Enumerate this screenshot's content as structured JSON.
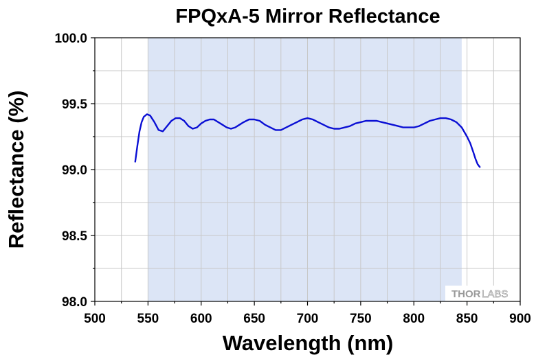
{
  "chart_data": {
    "type": "line",
    "title": "FPQxA-5 Mirror Reflectance",
    "xlabel": "Wavelength (nm)",
    "ylabel": "Reflectance (%)",
    "xlim": [
      500,
      900
    ],
    "ylim": [
      98.0,
      100.0
    ],
    "x_ticks": [
      500,
      550,
      600,
      650,
      700,
      750,
      800,
      850,
      900
    ],
    "x_tick_labels": [
      "500",
      "550",
      "600",
      "650",
      "700",
      "750",
      "800",
      "850",
      "900"
    ],
    "y_ticks": [
      98.0,
      98.5,
      99.0,
      99.5,
      100.0
    ],
    "y_tick_labels": [
      "98.0",
      "98.5",
      "99.0",
      "99.5",
      "100.0"
    ],
    "grid": true,
    "shaded_region": {
      "x_start": 550,
      "x_end": 845,
      "color": "#dce5f6"
    },
    "series": [
      {
        "name": "Reflectance",
        "color": "#0a0fd4",
        "x": [
          538,
          540,
          542,
          544,
          546,
          549,
          552,
          556,
          560,
          564,
          568,
          572,
          576,
          580,
          584,
          588,
          592,
          596,
          600,
          604,
          608,
          612,
          616,
          620,
          624,
          628,
          632,
          636,
          640,
          645,
          650,
          655,
          660,
          665,
          670,
          675,
          680,
          685,
          690,
          695,
          700,
          705,
          710,
          715,
          720,
          725,
          730,
          735,
          740,
          745,
          750,
          755,
          760,
          765,
          770,
          775,
          780,
          785,
          790,
          795,
          800,
          805,
          810,
          815,
          820,
          825,
          830,
          835,
          840,
          845,
          850,
          853,
          856,
          858,
          860,
          862
        ],
        "values": [
          99.06,
          99.18,
          99.29,
          99.36,
          99.4,
          99.42,
          99.41,
          99.36,
          99.3,
          99.29,
          99.33,
          99.37,
          99.39,
          99.39,
          99.37,
          99.33,
          99.31,
          99.32,
          99.35,
          99.37,
          99.38,
          99.38,
          99.36,
          99.34,
          99.32,
          99.31,
          99.32,
          99.34,
          99.36,
          99.38,
          99.38,
          99.37,
          99.34,
          99.32,
          99.3,
          99.3,
          99.32,
          99.34,
          99.36,
          99.38,
          99.39,
          99.38,
          99.36,
          99.34,
          99.32,
          99.31,
          99.31,
          99.32,
          99.33,
          99.35,
          99.36,
          99.37,
          99.37,
          99.37,
          99.36,
          99.35,
          99.34,
          99.33,
          99.32,
          99.32,
          99.32,
          99.33,
          99.35,
          99.37,
          99.38,
          99.39,
          99.39,
          99.38,
          99.36,
          99.32,
          99.25,
          99.2,
          99.13,
          99.08,
          99.04,
          99.02
        ]
      }
    ]
  },
  "watermark": {
    "brand_a": "THOR",
    "brand_b": "LABS"
  }
}
